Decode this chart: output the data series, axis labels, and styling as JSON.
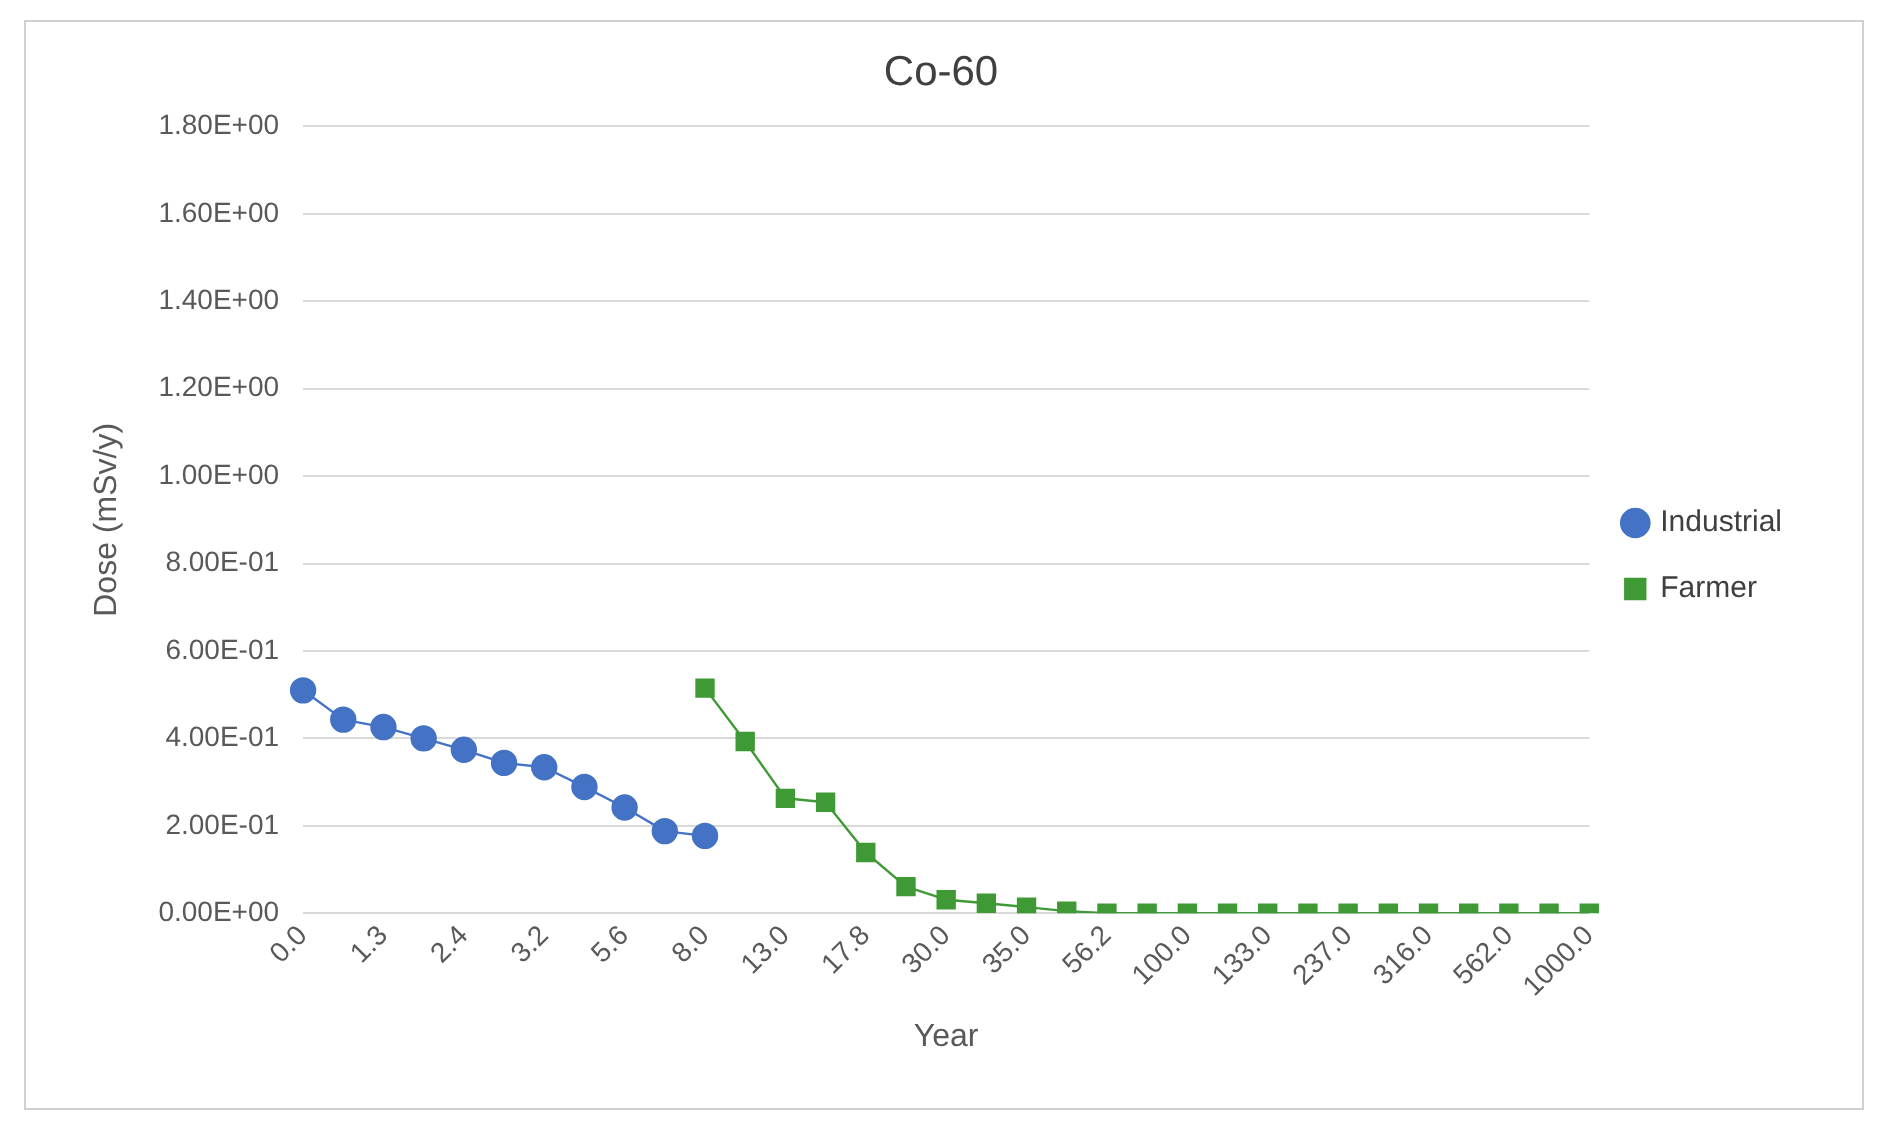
{
  "chart_data": {
    "type": "line",
    "title": "Co-60",
    "xlabel": "Year",
    "ylabel": "Dose (mSv/y)",
    "categories": [
      "0.0",
      null,
      "1.3",
      null,
      "2.4",
      null,
      "3.2",
      null,
      "5.6",
      null,
      "8.0",
      null,
      "13.0",
      null,
      "17.8",
      null,
      "30.0",
      null,
      "35.0",
      null,
      "56.2",
      null,
      "100.0",
      null,
      "133.0",
      null,
      "237.0",
      null,
      "316.0",
      null,
      "562.0",
      null,
      "1000.0"
    ],
    "series": [
      {
        "name": "Industrial",
        "color": "#4472c4",
        "marker": "circle",
        "values": [
          0.51,
          0.443,
          0.426,
          0.4,
          0.374,
          0.344,
          0.334,
          0.289,
          0.242,
          0.188,
          0.177,
          null,
          null,
          null,
          null,
          null,
          null,
          null,
          null,
          null,
          null,
          null,
          null,
          null,
          null,
          null,
          null,
          null,
          null,
          null,
          null,
          null,
          null
        ]
      },
      {
        "name": "Farmer",
        "color": "#3f9a36",
        "marker": "square",
        "values": [
          null,
          null,
          null,
          null,
          null,
          null,
          null,
          null,
          null,
          null,
          0.515,
          0.393,
          0.263,
          0.254,
          0.139,
          0.061,
          0.031,
          0.023,
          0.014,
          0.005,
          0,
          0,
          0,
          0,
          0,
          0,
          0,
          0,
          0,
          0,
          0,
          0,
          0
        ]
      }
    ],
    "ylim": [
      0,
      1.8
    ],
    "yticks": [
      {
        "value": 0,
        "label": "0.00E+00"
      },
      {
        "value": 0.2,
        "label": "2.00E-01"
      },
      {
        "value": 0.4,
        "label": "4.00E-01"
      },
      {
        "value": 0.6,
        "label": "6.00E-01"
      },
      {
        "value": 0.8,
        "label": "8.00E-01"
      },
      {
        "value": 1,
        "label": "1.00E+00"
      },
      {
        "value": 1.2,
        "label": "1.20E+00"
      },
      {
        "value": 1.4,
        "label": "1.40E+00"
      },
      {
        "value": 1.6,
        "label": "1.60E+00"
      },
      {
        "value": 1.8,
        "label": "1.80E+00"
      }
    ],
    "grid": "y",
    "legend": "right",
    "line_style": "solid"
  }
}
